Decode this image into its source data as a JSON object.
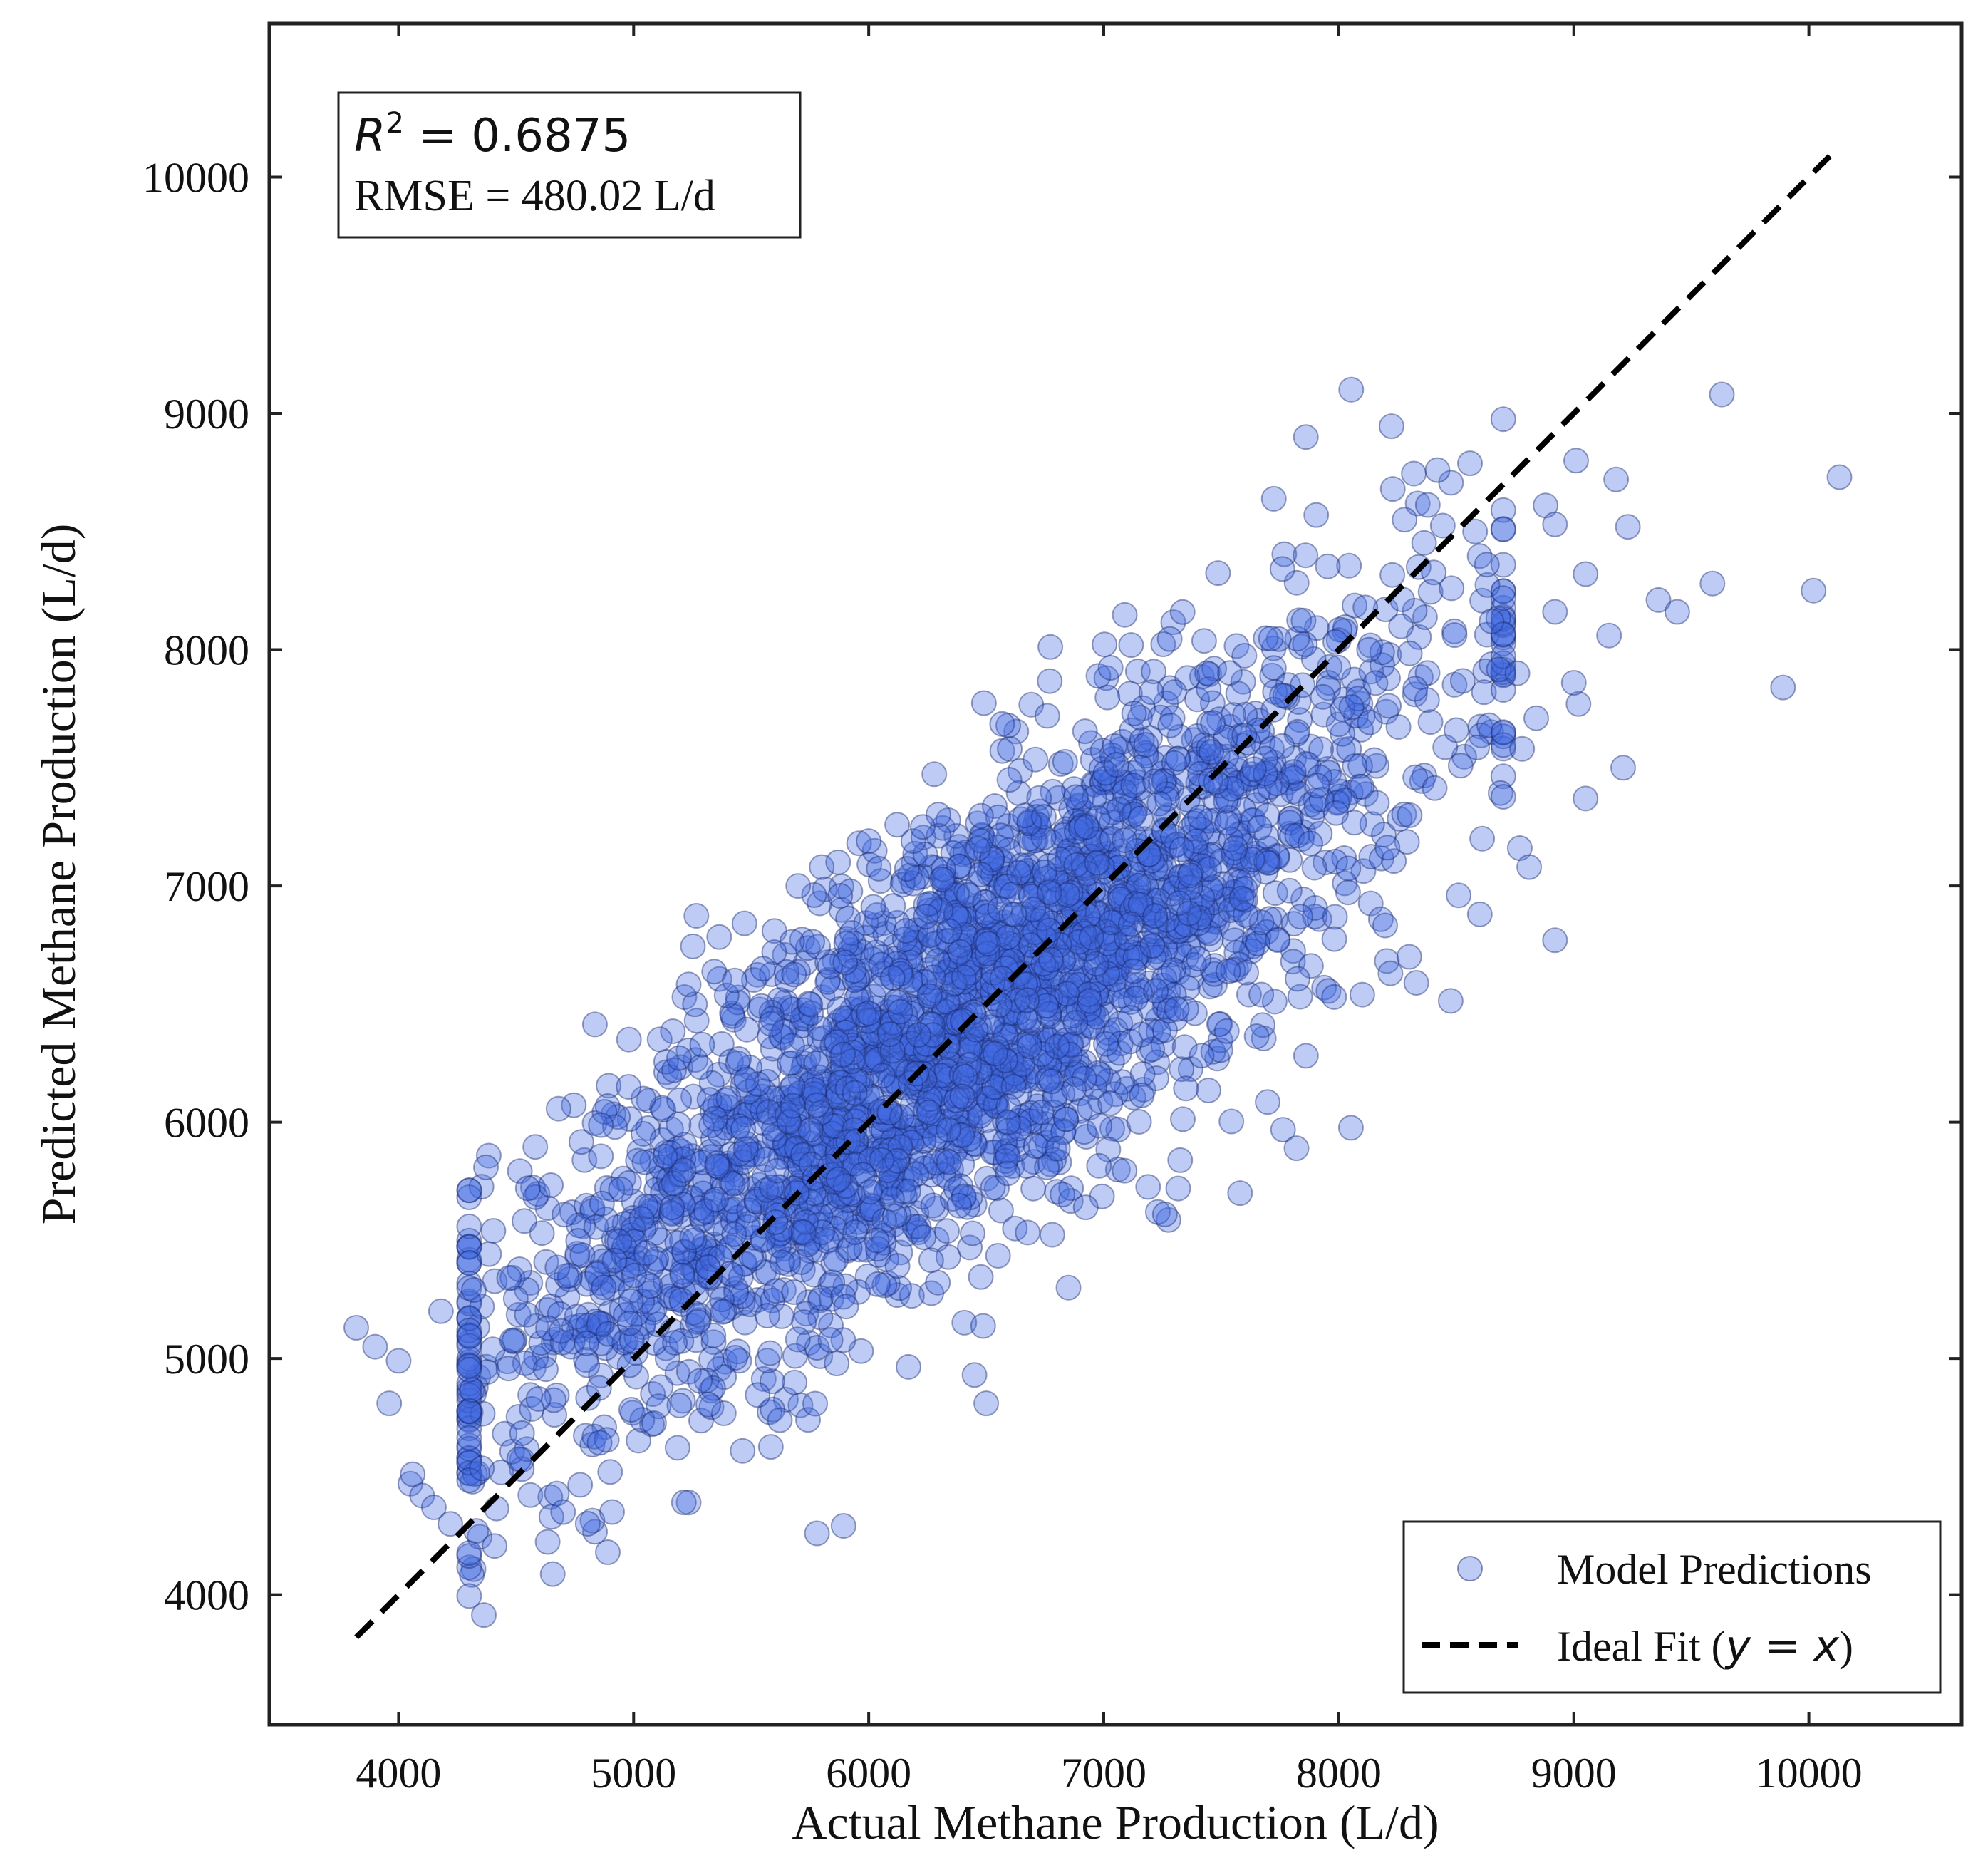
{
  "chart_data": {
    "type": "scatter",
    "xlabel": "Actual Methane Production (L/d)",
    "ylabel": "Predicted Methane Production (L/d)",
    "xlim": [
      3450,
      10650
    ],
    "ylim": [
      3450,
      10650
    ],
    "xticks": [
      4000,
      5000,
      6000,
      7000,
      8000,
      9000,
      10000
    ],
    "yticks": [
      4000,
      5000,
      6000,
      7000,
      8000,
      9000,
      10000
    ],
    "xtick_labels": [
      "4000",
      "5000",
      "6000",
      "7000",
      "8000",
      "9000",
      "10000"
    ],
    "ytick_labels": [
      "4000",
      "5000",
      "6000",
      "7000",
      "8000",
      "9000",
      "10000"
    ],
    "grid": false,
    "stats": {
      "r2_label": "R",
      "r2_sup": "2",
      "r2_value": " = 0.6875",
      "rmse_text": "RMSE = 480.02 L/d"
    },
    "legend": {
      "placement": "lower-right",
      "scatter_label": "Model Predictions",
      "ideal_label_prefix": "Ideal Fit (",
      "ideal_label_math": "y = x",
      "ideal_label_suffix": ")"
    },
    "series": [
      {
        "name": "Model Predictions",
        "kind": "scatter",
        "color": "#4169e1",
        "edge_color": "#1a2a6c",
        "opacity": 0.35,
        "sample_count": 3000,
        "seed": 12345,
        "x_mean": 6400,
        "x_std": 1000,
        "noise_std": 480,
        "outliers": [
          [
            3820,
            5130
          ],
          [
            3900,
            5050
          ],
          [
            4000,
            4990
          ],
          [
            3960,
            4810
          ],
          [
            4050,
            4470
          ],
          [
            4100,
            4420
          ],
          [
            4150,
            4370
          ],
          [
            4060,
            4510
          ],
          [
            4220,
            4300
          ],
          [
            4330,
            4270
          ],
          [
            4180,
            5200
          ],
          [
            4320,
            5290
          ],
          [
            4550,
            5720
          ],
          [
            4650,
            4330
          ],
          [
            4700,
            4350
          ],
          [
            4890,
            4180
          ],
          [
            4900,
            4520
          ],
          [
            5780,
            4260
          ],
          [
            4980,
            6350
          ],
          [
            5430,
            6600
          ],
          [
            5480,
            6180
          ],
          [
            5550,
            6650
          ],
          [
            5700,
            7000
          ],
          [
            5800,
            7080
          ],
          [
            5870,
            7100
          ],
          [
            6000,
            7190
          ],
          [
            6190,
            7190
          ],
          [
            6230,
            7250
          ],
          [
            6600,
            7580
          ],
          [
            6760,
            7720
          ],
          [
            6500,
            4810
          ],
          [
            6450,
            4930
          ],
          [
            6850,
            5300
          ],
          [
            7230,
            5620
          ],
          [
            7260,
            5610
          ],
          [
            7580,
            5700
          ],
          [
            7820,
            5890
          ],
          [
            7980,
            6530
          ],
          [
            8100,
            6540
          ],
          [
            8220,
            6630
          ],
          [
            8300,
            6700
          ],
          [
            8330,
            6590
          ],
          [
            7860,
            8900
          ],
          [
            8230,
            8680
          ],
          [
            8280,
            8550
          ],
          [
            8420,
            8760
          ],
          [
            8580,
            8500
          ],
          [
            8630,
            8360
          ],
          [
            8480,
            8260
          ],
          [
            9010,
            8800
          ],
          [
            9180,
            8720
          ],
          [
            9230,
            8520
          ],
          [
            9630,
            9080
          ],
          [
            10130,
            8730
          ],
          [
            10020,
            8250
          ],
          [
            9590,
            8280
          ],
          [
            9360,
            8210
          ],
          [
            9440,
            8160
          ],
          [
            9890,
            7840
          ],
          [
            9150,
            8060
          ],
          [
            9020,
            7770
          ],
          [
            8880,
            8610
          ],
          [
            8920,
            8530
          ],
          [
            8920,
            8160
          ],
          [
            9000,
            7860
          ],
          [
            9050,
            7370
          ],
          [
            9210,
            7500
          ],
          [
            8920,
            6770
          ],
          [
            8770,
            7160
          ],
          [
            8810,
            7080
          ],
          [
            8600,
            6880
          ],
          [
            8610,
            7200
          ],
          [
            8510,
            6960
          ],
          [
            8780,
            7580
          ],
          [
            8760,
            7900
          ],
          [
            8650,
            8120
          ],
          [
            9050,
            8320
          ],
          [
            8840,
            7710
          ]
        ]
      },
      {
        "name": "Ideal Fit (y = x)",
        "kind": "line",
        "style": "dashed",
        "color": "#000000",
        "x": [
          3820,
          10120
        ],
        "y": [
          3820,
          10120
        ]
      }
    ]
  }
}
